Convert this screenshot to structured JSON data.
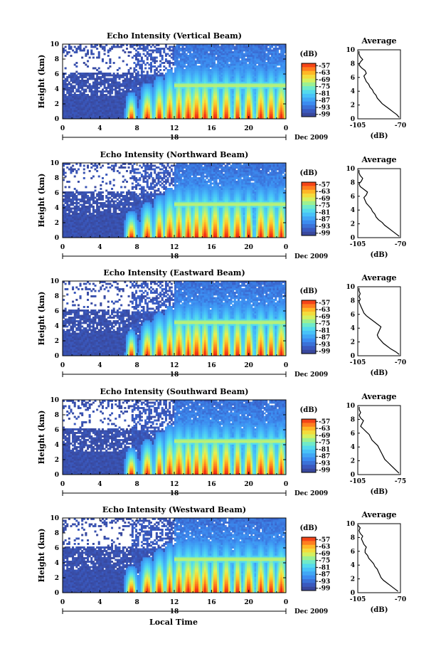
{
  "figure": {
    "bottom_xlabel": "Local Time"
  },
  "chart_data": [
    {
      "type": "heatmap",
      "title": "Echo Intensity (Vertical Beam)",
      "ylabel": "Height (km)",
      "xlabel": "",
      "date_label": "Dec 2009",
      "day_label": "18",
      "xticks": [
        "0",
        "4",
        "8",
        "12",
        "16",
        "20",
        "0"
      ],
      "yticks": [
        "0",
        "2",
        "4",
        "6",
        "8",
        "10"
      ],
      "xlim": [
        0,
        24
      ],
      "ylim": [
        0,
        10
      ],
      "colorbar": {
        "label": "(dB)",
        "ticks": [
          "-57",
          "-63",
          "-69",
          "-75",
          "-81",
          "-87",
          "-93",
          "-99"
        ],
        "range": [
          -101,
          -55
        ]
      },
      "profile": {
        "title": "Average",
        "xlabel": "(dB)",
        "xticks": [
          "-105",
          "-70"
        ],
        "yticks": [
          "0",
          "2",
          "4",
          "6",
          "8",
          "10"
        ],
        "xlim": [
          -105,
          -70
        ],
        "ylim": [
          0,
          10
        ],
        "points": [
          [
            -71,
            0.2
          ],
          [
            -73,
            0.6
          ],
          [
            -76,
            1
          ],
          [
            -79,
            1.4
          ],
          [
            -82,
            1.8
          ],
          [
            -85,
            2.2
          ],
          [
            -87,
            2.6
          ],
          [
            -89,
            3
          ],
          [
            -90,
            3.4
          ],
          [
            -92,
            3.8
          ],
          [
            -93,
            4.2
          ],
          [
            -95,
            4.6
          ],
          [
            -96,
            5
          ],
          [
            -98,
            5.4
          ],
          [
            -99,
            5.8
          ],
          [
            -100,
            6.2
          ],
          [
            -98,
            6.6
          ],
          [
            -99,
            7
          ],
          [
            -102,
            7.4
          ],
          [
            -104,
            7.8
          ],
          [
            -103,
            8.2
          ],
          [
            -101,
            8.6
          ],
          [
            -103,
            9
          ],
          [
            -104,
            9.4
          ],
          [
            -104,
            9.8
          ]
        ]
      }
    },
    {
      "type": "heatmap",
      "title": "Echo Intensity (Northward Beam)",
      "ylabel": "Height (km)",
      "xlabel": "",
      "date_label": "Dec 2009",
      "day_label": "18",
      "xticks": [
        "0",
        "4",
        "8",
        "12",
        "16",
        "20",
        "0"
      ],
      "yticks": [
        "0",
        "2",
        "4",
        "6",
        "8",
        "10"
      ],
      "xlim": [
        0,
        24
      ],
      "ylim": [
        0,
        10
      ],
      "colorbar": {
        "label": "(dB)",
        "ticks": [
          "-57",
          "-63",
          "-69",
          "-75",
          "-81",
          "-87",
          "-93",
          "-99"
        ],
        "range": [
          -101,
          -55
        ]
      },
      "profile": {
        "title": "Average",
        "xlabel": "(dB)",
        "xticks": [
          "-105",
          "-70"
        ],
        "yticks": [
          "0",
          "2",
          "4",
          "6",
          "8",
          "10"
        ],
        "xlim": [
          -105,
          -70
        ],
        "ylim": [
          0,
          10
        ],
        "points": [
          [
            -71,
            0.2
          ],
          [
            -74,
            0.6
          ],
          [
            -77,
            1
          ],
          [
            -80,
            1.4
          ],
          [
            -83,
            1.8
          ],
          [
            -85,
            2.2
          ],
          [
            -88,
            2.6
          ],
          [
            -90,
            3
          ],
          [
            -91,
            3.4
          ],
          [
            -93,
            3.8
          ],
          [
            -94,
            4.2
          ],
          [
            -96,
            4.6
          ],
          [
            -98,
            5
          ],
          [
            -99,
            5.4
          ],
          [
            -100,
            5.8
          ],
          [
            -98,
            6.2
          ],
          [
            -97,
            6.6
          ],
          [
            -100,
            7
          ],
          [
            -103,
            7.4
          ],
          [
            -104,
            7.8
          ],
          [
            -102,
            8.2
          ],
          [
            -101,
            8.6
          ],
          [
            -103,
            9
          ],
          [
            -104,
            9.4
          ],
          [
            -104,
            9.8
          ]
        ]
      }
    },
    {
      "type": "heatmap",
      "title": "Echo Intensity (Eastward Beam)",
      "ylabel": "Height (km)",
      "xlabel": "",
      "date_label": "Dec 2009",
      "day_label": "18",
      "xticks": [
        "0",
        "4",
        "8",
        "12",
        "16",
        "20",
        "0"
      ],
      "yticks": [
        "0",
        "2",
        "4",
        "6",
        "8",
        "10"
      ],
      "xlim": [
        0,
        24
      ],
      "ylim": [
        0,
        10
      ],
      "colorbar": {
        "label": "(dB)",
        "ticks": [
          "-57",
          "-63",
          "-69",
          "-75",
          "-81",
          "-87",
          "-93",
          "-99"
        ],
        "range": [
          -101,
          -55
        ]
      },
      "profile": {
        "title": "Average",
        "xlabel": "(dB)",
        "xticks": [
          "-105",
          "-70"
        ],
        "yticks": [
          "0",
          "2",
          "4",
          "6",
          "8",
          "10"
        ],
        "xlim": [
          -105,
          -70
        ],
        "ylim": [
          0,
          10
        ],
        "points": [
          [
            -71,
            0.2
          ],
          [
            -74,
            0.6
          ],
          [
            -78,
            1
          ],
          [
            -81,
            1.4
          ],
          [
            -84,
            1.8
          ],
          [
            -86,
            2.2
          ],
          [
            -88,
            2.6
          ],
          [
            -89,
            3
          ],
          [
            -88,
            3.4
          ],
          [
            -87,
            3.8
          ],
          [
            -86,
            4.2
          ],
          [
            -89,
            4.6
          ],
          [
            -92,
            5
          ],
          [
            -95,
            5.4
          ],
          [
            -98,
            5.8
          ],
          [
            -100,
            6.2
          ],
          [
            -101,
            6.6
          ],
          [
            -102,
            7
          ],
          [
            -103,
            7.4
          ],
          [
            -104,
            7.8
          ],
          [
            -103,
            8.2
          ],
          [
            -104,
            8.6
          ],
          [
            -103,
            9
          ],
          [
            -104,
            9.4
          ],
          [
            -104,
            9.8
          ]
        ]
      }
    },
    {
      "type": "heatmap",
      "title": "Echo Intensity (Southward Beam)",
      "ylabel": "Height (km)",
      "xlabel": "",
      "date_label": "Dec 2009",
      "day_label": "18",
      "xticks": [
        "0",
        "4",
        "8",
        "12",
        "16",
        "20",
        "0"
      ],
      "yticks": [
        "0",
        "2",
        "4",
        "6",
        "8",
        "10"
      ],
      "xlim": [
        0,
        24
      ],
      "ylim": [
        0,
        10
      ],
      "colorbar": {
        "label": "(dB)",
        "ticks": [
          "-57",
          "-63",
          "-69",
          "-75",
          "-81",
          "-87",
          "-93",
          "-99"
        ],
        "range": [
          -101,
          -55
        ]
      },
      "profile": {
        "title": "Average",
        "xlabel": "(dB)",
        "xticks": [
          "-105",
          "-75"
        ],
        "yticks": [
          "0",
          "2",
          "4",
          "6",
          "8",
          "10"
        ],
        "xlim": [
          -105,
          -75
        ],
        "ylim": [
          0,
          10
        ],
        "points": [
          [
            -76,
            0.2
          ],
          [
            -78,
            0.6
          ],
          [
            -80,
            1
          ],
          [
            -82,
            1.4
          ],
          [
            -84,
            1.8
          ],
          [
            -86,
            2.2
          ],
          [
            -87,
            2.6
          ],
          [
            -88,
            3
          ],
          [
            -89,
            3.4
          ],
          [
            -90,
            3.8
          ],
          [
            -91,
            4.2
          ],
          [
            -93,
            4.6
          ],
          [
            -95,
            5
          ],
          [
            -96,
            5.4
          ],
          [
            -97,
            5.8
          ],
          [
            -99,
            6.2
          ],
          [
            -101,
            6.6
          ],
          [
            -103,
            7
          ],
          [
            -102,
            7.4
          ],
          [
            -101,
            7.8
          ],
          [
            -103,
            8.2
          ],
          [
            -104,
            8.6
          ],
          [
            -103,
            9
          ],
          [
            -104,
            9.4
          ],
          [
            -104,
            9.8
          ]
        ]
      }
    },
    {
      "type": "heatmap",
      "title": "Echo Intensity (Westward Beam)",
      "ylabel": "Height (km)",
      "xlabel": "",
      "date_label": "Dec 2009",
      "day_label": "18",
      "xticks": [
        "0",
        "4",
        "8",
        "12",
        "16",
        "20",
        "0"
      ],
      "yticks": [
        "0",
        "2",
        "4",
        "6",
        "8",
        "10"
      ],
      "xlim": [
        0,
        24
      ],
      "ylim": [
        0,
        10
      ],
      "colorbar": {
        "label": "(dB)",
        "ticks": [
          "-57",
          "-63",
          "-69",
          "-75",
          "-81",
          "-87",
          "-93",
          "-99"
        ],
        "range": [
          -101,
          -55
        ]
      },
      "profile": {
        "title": "Average",
        "xlabel": "(dB)",
        "xticks": [
          "-105",
          "-70"
        ],
        "yticks": [
          "0",
          "2",
          "4",
          "6",
          "8",
          "10"
        ],
        "xlim": [
          -105,
          -70
        ],
        "ylim": [
          0,
          10
        ],
        "points": [
          [
            -72,
            0.2
          ],
          [
            -75,
            0.6
          ],
          [
            -78,
            1
          ],
          [
            -81,
            1.4
          ],
          [
            -84,
            1.8
          ],
          [
            -86,
            2.2
          ],
          [
            -87,
            2.6
          ],
          [
            -88,
            3
          ],
          [
            -89,
            3.4
          ],
          [
            -91,
            3.8
          ],
          [
            -92,
            4.2
          ],
          [
            -94,
            4.6
          ],
          [
            -96,
            5
          ],
          [
            -97,
            5.4
          ],
          [
            -99,
            5.8
          ],
          [
            -99,
            6.2
          ],
          [
            -98,
            6.6
          ],
          [
            -100,
            7
          ],
          [
            -101,
            7.4
          ],
          [
            -102,
            7.8
          ],
          [
            -101,
            8.2
          ],
          [
            -103,
            8.6
          ],
          [
            -104,
            9
          ],
          [
            -103,
            9.4
          ],
          [
            -105,
            9.8
          ]
        ]
      }
    }
  ]
}
